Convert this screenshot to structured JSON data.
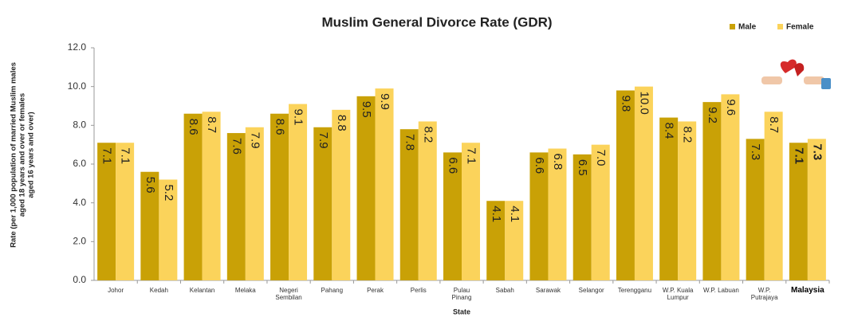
{
  "chart_data": {
    "type": "bar",
    "title": "Muslim General Divorce Rate (GDR)",
    "x_label": "State",
    "y_label": [
      "Rate (per 1,000 population of married Muslim males",
      "aged 18 years and over or females",
      "aged 16 years and over)"
    ],
    "categories": [
      "Johor",
      "Kedah",
      "Kelantan",
      "Melaka",
      "Negeri Sembilan",
      "Pahang",
      "Perak",
      "Perlis",
      "Pulau Pinang",
      "Sabah",
      "Sarawak",
      "Selangor",
      "Terengganu",
      "W.P. Kuala Lumpur",
      "W.P. Labuan",
      "W.P. Putrajaya",
      "Malaysia"
    ],
    "series": [
      {
        "name": "Male",
        "color": "#c9a106",
        "values": [
          7.1,
          5.6,
          8.6,
          7.6,
          8.6,
          7.9,
          9.5,
          7.8,
          6.6,
          4.1,
          6.6,
          6.5,
          9.8,
          8.4,
          9.2,
          7.3,
          7.1
        ],
        "value_labels": [
          "7.1",
          "5.6",
          "8.6",
          "7.6",
          "8.6",
          "7.9",
          "9.5",
          "7.8",
          "6.6",
          "4.1",
          "6.6",
          "6.5",
          "9.8",
          "8.4",
          "9.2",
          "7.3",
          "7.1"
        ]
      },
      {
        "name": "Female",
        "color": "#fbd35b",
        "values": [
          7.1,
          5.2,
          8.7,
          7.9,
          9.1,
          8.8,
          9.9,
          8.2,
          7.1,
          4.1,
          6.8,
          7.0,
          10.0,
          8.2,
          9.6,
          8.7,
          7.3
        ],
        "value_labels": [
          "7.1",
          "5.2",
          "8.7",
          "7.9",
          "9.1",
          "8.8",
          "9.9",
          "8.2",
          "7.1",
          "4.1",
          "6.8",
          "7.0",
          "10.0",
          "8.2",
          "9.6",
          "8.7",
          "7.3"
        ]
      }
    ],
    "ylim": [
      0,
      12
    ],
    "yticks": [
      {
        "value": 0,
        "label": "0.0"
      },
      {
        "value": 2,
        "label": "2.0"
      },
      {
        "value": 4,
        "label": "4.0"
      },
      {
        "value": 6,
        "label": "6.0"
      },
      {
        "value": 8,
        "label": "8.0"
      },
      {
        "value": 10,
        "label": "10.0"
      },
      {
        "value": 12,
        "label": "12.0"
      }
    ],
    "legend": "top-right",
    "grid": false
  }
}
